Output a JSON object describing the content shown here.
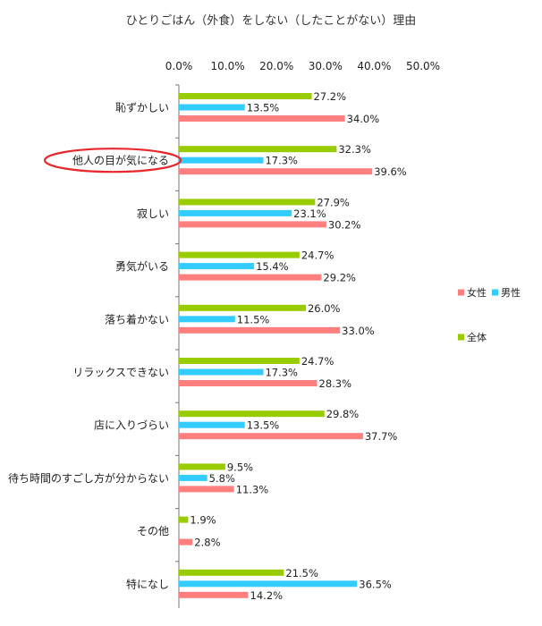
{
  "chart_data": {
    "type": "bar",
    "orientation": "horizontal",
    "title": "ひとりごはん（外食）をしない（したことがない）理由",
    "xlim": [
      0,
      50
    ],
    "xticks": [
      "0.0%",
      "10.0%",
      "20.0%",
      "30.0%",
      "40.0%",
      "50.0%"
    ],
    "xaxis_position": "top",
    "grid": false,
    "legend_position": "right",
    "categories": [
      "恥ずかしい",
      "他人の目が気になる",
      "寂しい",
      "勇気がいる",
      "落ち着かない",
      "リラックスできない",
      "店に入りづらい",
      "待ち時間のすごし方が分からない",
      "その他",
      "特になし"
    ],
    "highlighted_category": "他人の目が気になる",
    "series": [
      {
        "name": "全体",
        "color": "#99cc00",
        "values": [
          27.2,
          32.3,
          27.9,
          24.7,
          26.0,
          24.7,
          29.8,
          9.5,
          1.9,
          21.5
        ],
        "labels": [
          "27.2%",
          "32.3%",
          "27.9%",
          "24.7%",
          "26.0%",
          "24.7%",
          "29.8%",
          "9.5%",
          "1.9%",
          "21.5%"
        ]
      },
      {
        "name": "男性",
        "color": "#33ccff",
        "values": [
          13.5,
          17.3,
          23.1,
          15.4,
          11.5,
          17.3,
          13.5,
          5.8,
          null,
          36.5
        ],
        "labels": [
          "13.5%",
          "17.3%",
          "23.1%",
          "15.4%",
          "11.5%",
          "17.3%",
          "13.5%",
          "5.8%",
          "",
          "36.5%"
        ]
      },
      {
        "name": "女性",
        "color": "#ff7f7f",
        "values": [
          34.0,
          39.6,
          30.2,
          29.2,
          33.0,
          28.3,
          37.7,
          11.3,
          2.8,
          14.2
        ],
        "labels": [
          "34.0%",
          "39.6%",
          "30.2%",
          "29.2%",
          "33.0%",
          "28.3%",
          "37.7%",
          "11.3%",
          "2.8%",
          "14.2%"
        ]
      }
    ]
  }
}
